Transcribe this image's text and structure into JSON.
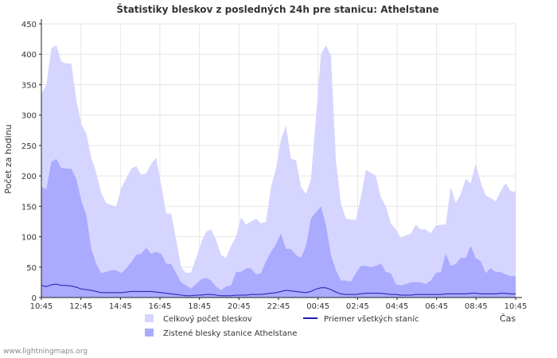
{
  "chart_data": {
    "type": "area",
    "title": "Štatistiky bleskov z posledných 24h pre stanicu: Athelstane",
    "ylabel": "Počet za hodinu",
    "xlabel": "Čas",
    "ylim": [
      0,
      450
    ],
    "yticks": [
      0,
      50,
      100,
      150,
      200,
      250,
      300,
      350,
      400,
      450
    ],
    "x_tick_labels": [
      "10:45",
      "12:45",
      "14:45",
      "16:45",
      "18:45",
      "20:45",
      "22:45",
      "00:45",
      "02:45",
      "04:45",
      "06:45",
      "08:45",
      "10:45"
    ],
    "series": [
      {
        "name": "Celkový počet bleskov",
        "style": "area",
        "color": "#d5d5ff",
        "values": [
          335,
          350,
          410,
          415,
          388,
          385,
          385,
          325,
          285,
          270,
          230,
          205,
          172,
          155,
          152,
          150,
          180,
          196,
          212,
          216,
          202,
          204,
          220,
          230,
          185,
          138,
          138,
          95,
          50,
          40,
          42,
          65,
          90,
          108,
          112,
          95,
          70,
          65,
          85,
          100,
          132,
          120,
          125,
          130,
          122,
          125,
          182,
          212,
          260,
          283,
          228,
          226,
          182,
          170,
          195,
          295,
          400,
          415,
          398,
          225,
          155,
          130,
          128,
          128,
          165,
          210,
          205,
          200,
          165,
          150,
          122,
          112,
          98,
          102,
          105,
          120,
          112,
          112,
          106,
          118,
          120,
          120,
          182,
          156,
          170,
          195,
          188,
          220,
          190,
          168,
          164,
          158,
          175,
          188,
          175,
          174
        ]
      },
      {
        "name": "Zistené blesky stanice Athelstane",
        "style": "area",
        "color": "#aaaaff",
        "values": [
          182,
          178,
          223,
          228,
          213,
          212,
          212,
          195,
          160,
          135,
          80,
          55,
          40,
          42,
          45,
          45,
          40,
          48,
          58,
          70,
          72,
          82,
          72,
          75,
          72,
          56,
          55,
          40,
          25,
          20,
          15,
          22,
          30,
          32,
          28,
          18,
          12,
          18,
          20,
          42,
          42,
          48,
          48,
          38,
          40,
          60,
          75,
          88,
          105,
          80,
          80,
          70,
          65,
          85,
          130,
          140,
          150,
          120,
          70,
          45,
          28,
          28,
          26,
          40,
          52,
          52,
          50,
          52,
          56,
          42,
          40,
          22,
          20,
          22,
          25,
          25,
          25,
          22,
          28,
          40,
          42,
          72,
          52,
          55,
          65,
          65,
          85,
          65,
          60,
          40,
          48,
          42,
          42,
          38,
          35,
          35
        ]
      },
      {
        "name": "Priemer všetkých staníc",
        "style": "line",
        "color": "#1c1caa",
        "values": [
          20,
          18,
          21,
          22,
          20,
          20,
          19,
          17,
          14,
          13,
          12,
          10,
          8,
          8,
          8,
          8,
          8,
          9,
          10,
          10,
          10,
          10,
          10,
          9,
          8,
          7,
          6,
          5,
          4,
          3,
          3,
          4,
          4,
          5,
          5,
          4,
          3,
          3,
          3,
          4,
          4,
          4,
          5,
          5,
          5,
          6,
          7,
          8,
          10,
          12,
          11,
          10,
          9,
          8,
          10,
          14,
          16,
          16,
          13,
          9,
          6,
          5,
          5,
          5,
          6,
          7,
          7,
          7,
          7,
          6,
          5,
          5,
          4,
          4,
          4,
          5,
          5,
          5,
          5,
          5,
          5,
          6,
          6,
          6,
          6,
          6,
          7,
          7,
          6,
          6,
          6,
          6,
          7,
          7,
          6,
          6
        ]
      }
    ],
    "legend": [
      {
        "key": "total",
        "label": "Celkový počet bleskov",
        "color": "#d5d5ff"
      },
      {
        "key": "station",
        "label": "Zistené blesky stanice Athelstane",
        "color": "#aaaaff"
      },
      {
        "key": "avg",
        "label": "Priemer všetkých staníc",
        "color": "#1c1caa"
      }
    ]
  },
  "footer": {
    "credit": "www.lightningmaps.org"
  }
}
